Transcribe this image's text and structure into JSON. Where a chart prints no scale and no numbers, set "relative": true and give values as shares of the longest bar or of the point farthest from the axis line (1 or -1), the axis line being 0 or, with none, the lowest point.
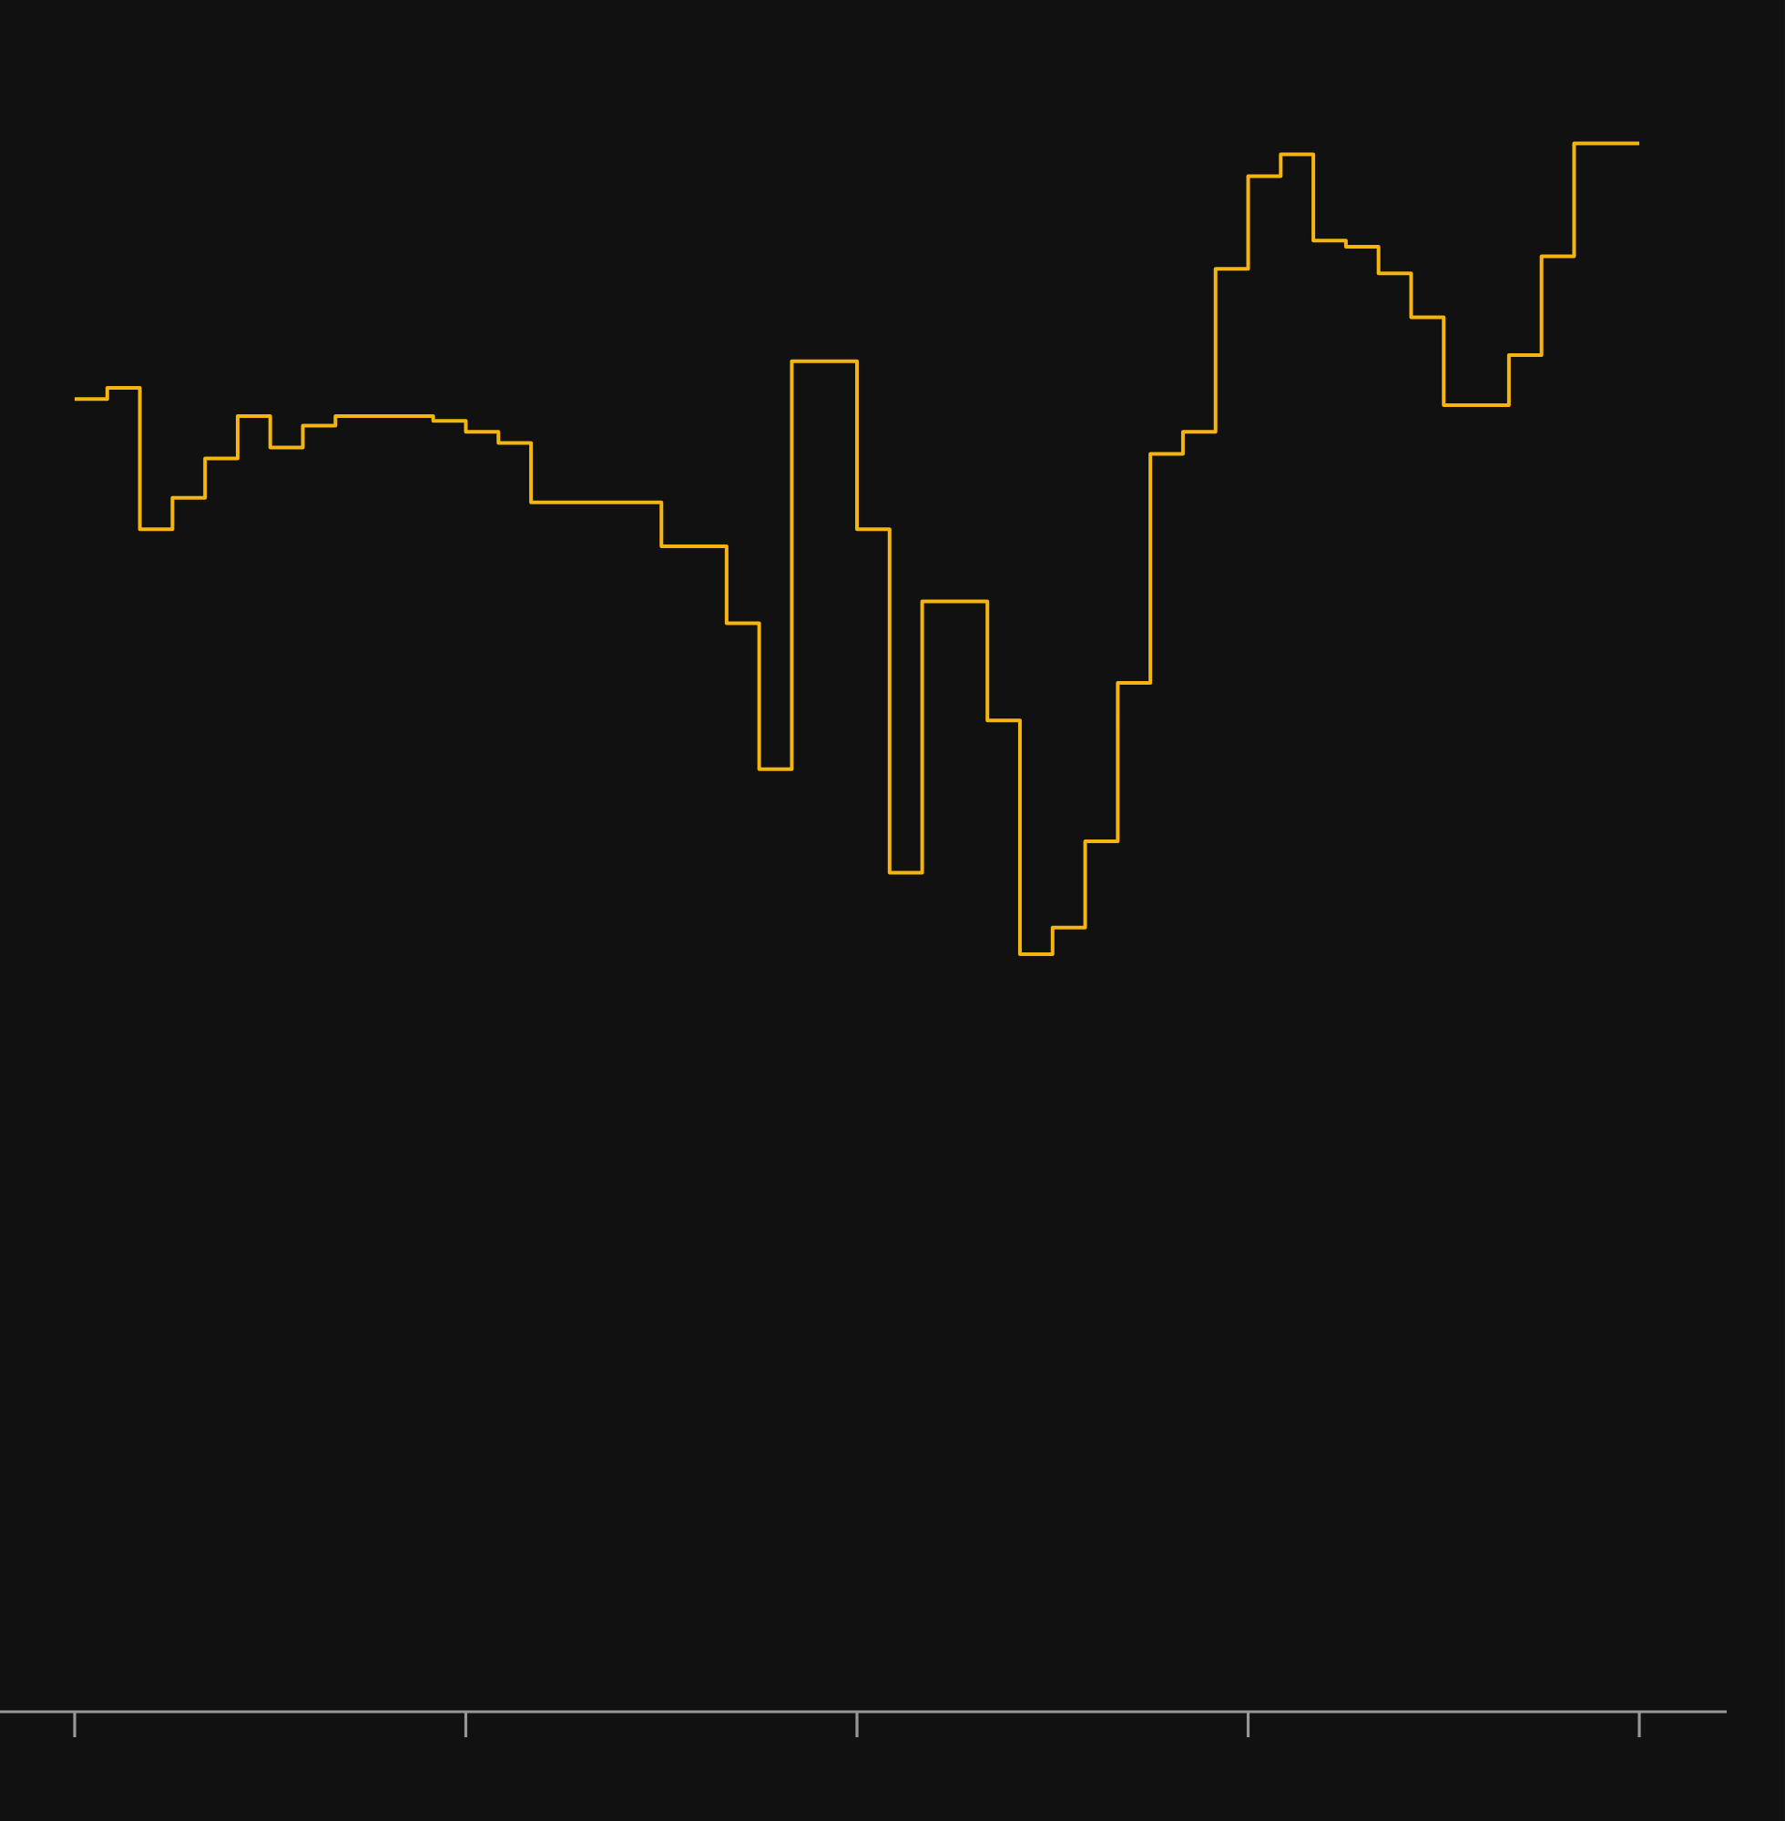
{
  "chart_data": {
    "type": "step",
    "relative": true,
    "categories": [
      null,
      null,
      null,
      null,
      null,
      null,
      null,
      null,
      null,
      null,
      null,
      null,
      null,
      null,
      null,
      null,
      null,
      null,
      null,
      null,
      null,
      null,
      null,
      null,
      null,
      null,
      null,
      null,
      null,
      null,
      null,
      null,
      null,
      null,
      null,
      null,
      null,
      null,
      null,
      null,
      null,
      null,
      null,
      null,
      null,
      null,
      null,
      null,
      null
    ],
    "series": [
      {
        "color": "#f5b50f",
        "values": [
          0.837,
          0.844,
          0.754,
          0.774,
          0.799,
          0.826,
          0.806,
          0.82,
          0.826,
          0.826,
          0.826,
          0.823,
          0.816,
          0.809,
          0.771,
          0.771,
          0.771,
          0.771,
          0.743,
          0.743,
          0.694,
          0.601,
          0.861,
          0.861,
          0.754,
          0.535,
          0.708,
          0.708,
          0.632,
          0.483,
          0.5,
          0.555,
          0.656,
          0.802,
          0.816,
          0.92,
          0.979,
          0.993,
          0.938,
          0.934,
          0.917,
          0.889,
          0.833,
          0.833,
          0.865,
          0.928,
          1,
          1,
          1
        ]
      }
    ]
  }
}
